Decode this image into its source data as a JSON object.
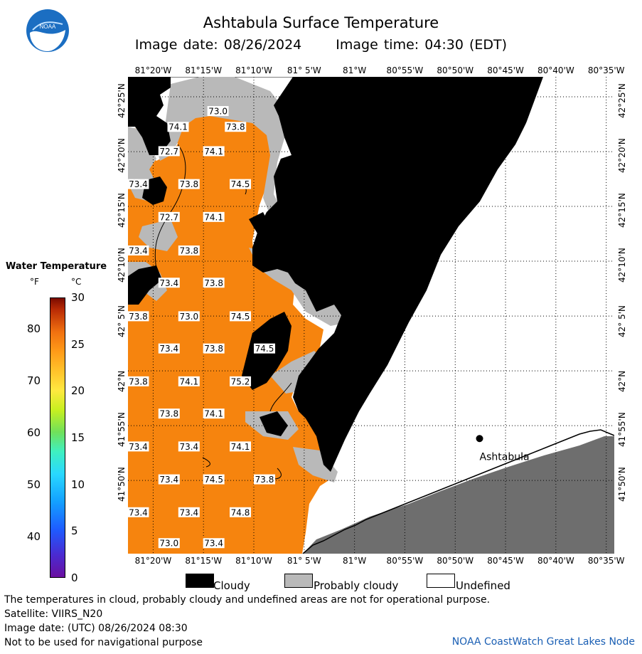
{
  "title": "Ashtabula Surface Temperature",
  "image_date": "Image date: 08/26/2024",
  "image_time": "Image time: 04:30 (EDT)",
  "logo_text": "NOAA",
  "longitudes": [
    "81°20'W",
    "81°15'W",
    "81°10'W",
    "81° 5'W",
    "81°W",
    "80°55'W",
    "80°50'W",
    "80°45'W",
    "80°40'W",
    "80°35'W"
  ],
  "latitudes": [
    "42°25'N",
    "42°20'N",
    "42°15'N",
    "42°10'N",
    "42° 5'N",
    "42°N",
    "41°55'N",
    "41°50'N"
  ],
  "temperature_labels": [
    {
      "t": "73.0",
      "lon": -81.226,
      "lat": 42.395
    },
    {
      "t": "74.1",
      "lon": -81.292,
      "lat": 42.371
    },
    {
      "t": "73.8",
      "lon": -81.197,
      "lat": 42.371
    },
    {
      "t": "72.7",
      "lon": -81.307,
      "lat": 42.334
    },
    {
      "t": "74.1",
      "lon": -81.233,
      "lat": 42.334
    },
    {
      "t": "73.4",
      "lon": -81.358,
      "lat": 42.284
    },
    {
      "t": "73.8",
      "lon": -81.274,
      "lat": 42.284
    },
    {
      "t": "74.5",
      "lon": -81.189,
      "lat": 42.284
    },
    {
      "t": "72.7",
      "lon": -81.307,
      "lat": 42.234
    },
    {
      "t": "74.1",
      "lon": -81.233,
      "lat": 42.234
    },
    {
      "t": "73.4",
      "lon": -81.358,
      "lat": 42.183
    },
    {
      "t": "73.8",
      "lon": -81.274,
      "lat": 42.183
    },
    {
      "t": "73.4",
      "lon": -81.307,
      "lat": 42.134
    },
    {
      "t": "73.8",
      "lon": -81.233,
      "lat": 42.134
    },
    {
      "t": "73.8",
      "lon": -81.358,
      "lat": 42.083
    },
    {
      "t": "73.0",
      "lon": -81.274,
      "lat": 42.083
    },
    {
      "t": "74.5",
      "lon": -81.189,
      "lat": 42.083
    },
    {
      "t": "73.4",
      "lon": -81.307,
      "lat": 42.034
    },
    {
      "t": "73.8",
      "lon": -81.233,
      "lat": 42.034
    },
    {
      "t": "74.5",
      "lon": -81.149,
      "lat": 42.034
    },
    {
      "t": "73.8",
      "lon": -81.358,
      "lat": 41.984
    },
    {
      "t": "74.1",
      "lon": -81.274,
      "lat": 41.984
    },
    {
      "t": "75.2",
      "lon": -81.189,
      "lat": 41.984
    },
    {
      "t": "73.8",
      "lon": -81.307,
      "lat": 41.935
    },
    {
      "t": "74.1",
      "lon": -81.233,
      "lat": 41.935
    },
    {
      "t": "73.4",
      "lon": -81.358,
      "lat": 41.885
    },
    {
      "t": "73.4",
      "lon": -81.274,
      "lat": 41.885
    },
    {
      "t": "74.1",
      "lon": -81.189,
      "lat": 41.885
    },
    {
      "t": "73.4",
      "lon": -81.307,
      "lat": 41.835
    },
    {
      "t": "74.5",
      "lon": -81.233,
      "lat": 41.835
    },
    {
      "t": "73.8",
      "lon": -81.149,
      "lat": 41.835
    },
    {
      "t": "73.4",
      "lon": -81.358,
      "lat": 41.785
    },
    {
      "t": "73.4",
      "lon": -81.274,
      "lat": 41.785
    },
    {
      "t": "74.8",
      "lon": -81.189,
      "lat": 41.785
    },
    {
      "t": "73.0",
      "lon": -81.307,
      "lat": 41.738
    },
    {
      "t": "73.4",
      "lon": -81.233,
      "lat": 41.738
    }
  ],
  "city": {
    "name": "Ashtabula",
    "lon": -80.793,
    "lat": 41.897
  },
  "legend": {
    "title": "Water Temperature",
    "f_unit": "°F",
    "c_unit": "°C",
    "f_ticks": [
      "80",
      "70",
      "60",
      "50",
      "40"
    ],
    "c_ticks": [
      "30",
      "25",
      "20",
      "15",
      "10",
      "5",
      "0"
    ]
  },
  "key": {
    "cloudy": "Cloudy",
    "probably_cloudy": "Probably cloudy",
    "undefined": "Undefined"
  },
  "colors": {
    "water": "#f6840e",
    "land": "#6e6e6e",
    "cloud": "#000000",
    "probably_cloudy": "#b9b9b9",
    "undefined": "#ffffff"
  },
  "footer": {
    "disclaimer": "The temperatures in cloud, probably cloudy and undefined areas are not for operational purpose.",
    "satellite": "Satellite: VIIRS_N20",
    "utc_date": "Image date: (UTC) 08/26/2024  08:30",
    "nav_warning": "Not to be used for navigational purpose",
    "credit": "NOAA CoastWatch Great Lakes Node"
  }
}
